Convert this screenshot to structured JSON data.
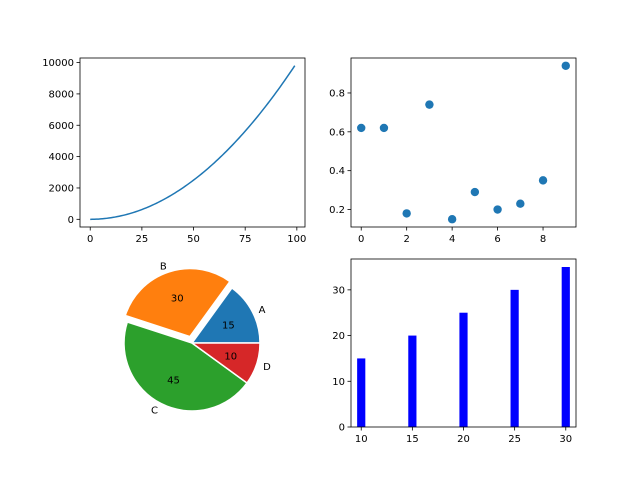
{
  "chart_data": [
    {
      "type": "line",
      "title": "",
      "xlabel": "",
      "ylabel": "",
      "xlim": [
        -4.95,
        103.95
      ],
      "ylim": [
        -490.05,
        10291.05
      ],
      "xticks": [
        0,
        25,
        50,
        75,
        100
      ],
      "yticks": [
        0,
        2000,
        4000,
        6000,
        8000,
        10000
      ],
      "series": [
        {
          "color": "#1f77b4",
          "function": "y = x^2",
          "x_range": [
            0,
            99
          ]
        }
      ]
    },
    {
      "type": "scatter",
      "title": "",
      "xlabel": "",
      "ylabel": "",
      "xlim": [
        -0.45,
        9.45
      ],
      "ylim": [
        0.11,
        0.98
      ],
      "xticks": [
        0,
        2,
        4,
        6,
        8
      ],
      "yticks": [
        0.2,
        0.4,
        0.6,
        0.8
      ],
      "series": [
        {
          "color": "#1f77b4",
          "x": [
            0,
            1,
            2,
            3,
            4,
            5,
            6,
            7,
            8,
            9
          ],
          "y": [
            0.62,
            0.62,
            0.18,
            0.74,
            0.15,
            0.29,
            0.2,
            0.23,
            0.35,
            0.94
          ]
        }
      ]
    },
    {
      "type": "pie",
      "title": "",
      "labels": [
        "A",
        "B",
        "C",
        "D"
      ],
      "values": [
        15,
        30,
        45,
        10
      ],
      "value_labels": [
        "15",
        "30",
        "45",
        "10"
      ],
      "colors": [
        "#1f77b4",
        "#ff7f0e",
        "#2ca02c",
        "#d62728"
      ],
      "explode": [
        0,
        0.1,
        0,
        0
      ],
      "startangle": 0
    },
    {
      "type": "bar",
      "title": "",
      "xlabel": "",
      "ylabel": "",
      "categories": [
        10,
        15,
        20,
        25,
        30
      ],
      "values": [
        15,
        20,
        25,
        30,
        35
      ],
      "color": "#0000ff",
      "xlim": [
        9.0,
        31.0
      ],
      "ylim": [
        0,
        36.75
      ],
      "xticks": [
        10,
        15,
        20,
        25,
        30
      ],
      "yticks": [
        0,
        10,
        20,
        30
      ]
    }
  ]
}
